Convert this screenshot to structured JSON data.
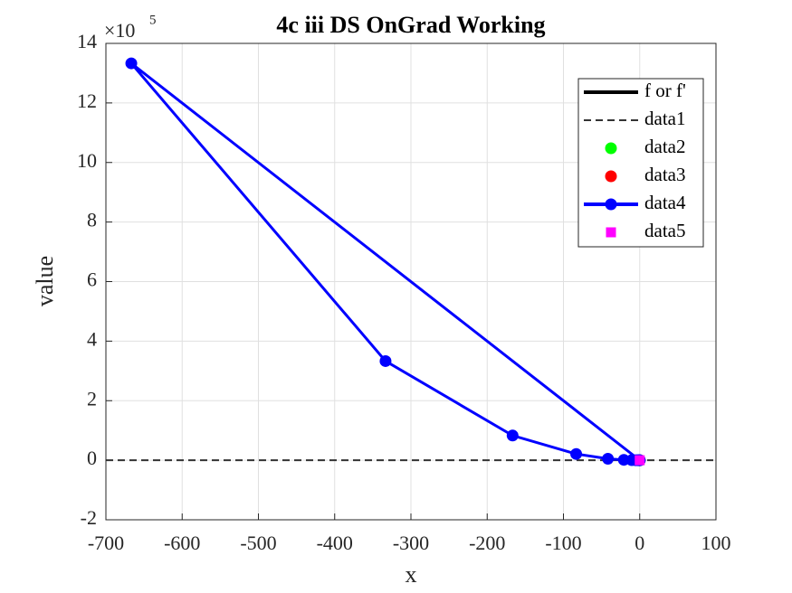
{
  "chart_data": {
    "type": "line",
    "title": "4c iii DS OnGrad Working",
    "xlabel": "x",
    "ylabel": "value",
    "y_multiplier": {
      "base": "×10",
      "exponent": "5"
    },
    "xlim": [
      -700,
      100
    ],
    "xticks": [
      -700,
      -600,
      -500,
      -400,
      -300,
      -200,
      -100,
      0,
      100
    ],
    "ylim": [
      -2,
      14
    ],
    "yticks": [
      -2,
      0,
      2,
      4,
      6,
      8,
      10,
      12,
      14
    ],
    "grid": true,
    "legend_position": "upper right",
    "series": [
      {
        "name": "f or f'",
        "color": "#000000",
        "line_style": "solid",
        "marker": "none",
        "x": [],
        "values": []
      },
      {
        "name": "data1",
        "color": "#333333",
        "line_style": "dashed",
        "marker": "none",
        "x": [
          -700,
          100
        ],
        "values": [
          0,
          0
        ]
      },
      {
        "name": "data2",
        "color": "#00ff00",
        "line_style": "none",
        "marker": "circle",
        "x": [
          0
        ],
        "values": [
          0
        ]
      },
      {
        "name": "data3",
        "color": "#ff0000",
        "line_style": "none",
        "marker": "circle",
        "x": [
          0
        ],
        "values": [
          0
        ]
      },
      {
        "name": "data4",
        "color": "#0000ff",
        "line_style": "solid",
        "marker": "circle",
        "x": [
          0,
          -666.7,
          -333.3,
          -166.7,
          -83.3,
          -41.7,
          -20.8,
          -10.4,
          -5.2,
          -2.6,
          -1.3,
          0
        ],
        "values": [
          0,
          13.33,
          3.33,
          0.83,
          0.21,
          0.05,
          0.013,
          0.003,
          0.001,
          0,
          0,
          0
        ]
      },
      {
        "name": "data5",
        "color": "#ff00ff",
        "line_style": "none",
        "marker": "square",
        "x": [
          0
        ],
        "values": [
          0
        ]
      }
    ]
  }
}
